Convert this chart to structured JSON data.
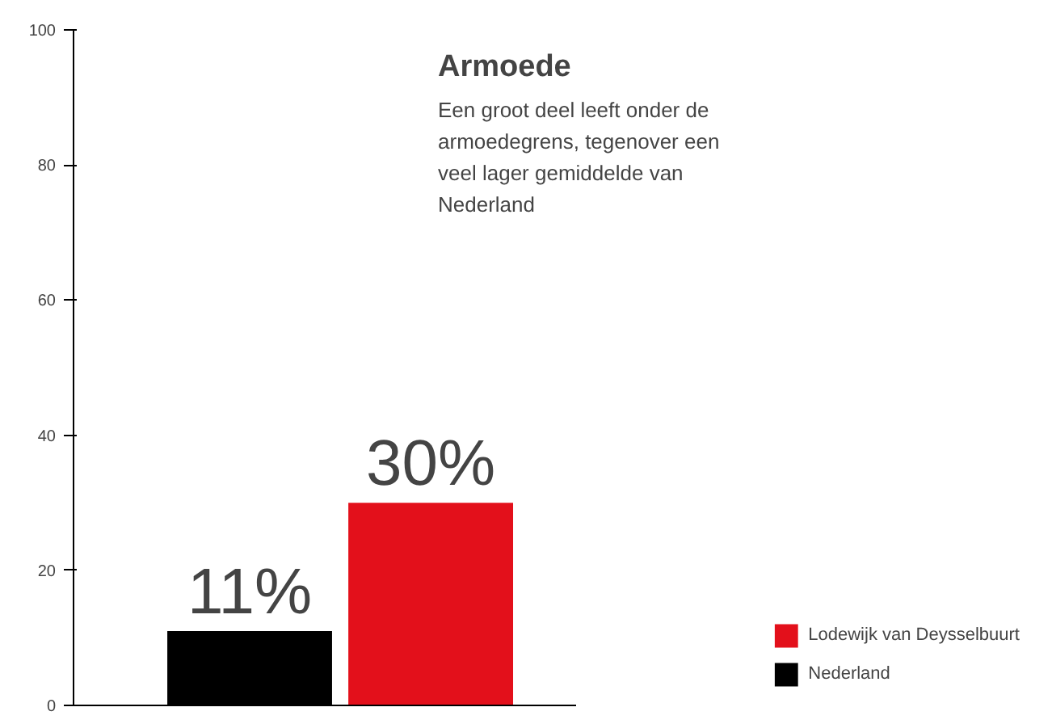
{
  "chart_data": {
    "type": "bar",
    "title": "Armoede",
    "subtitle": "Een groot deel leeft onder de\narmoedegrens, tegenover een\nveel lager gemiddelde van\nNederland",
    "categories": [
      null
    ],
    "series": [
      {
        "name": "Nederland",
        "color": "#000000",
        "values": [
          11
        ],
        "value_labels": [
          "11%"
        ]
      },
      {
        "name": "Lodewijk van Deysselbuurt",
        "color": "#e3101b",
        "values": [
          30
        ],
        "value_labels": [
          "30%"
        ]
      }
    ],
    "ylim": [
      0,
      100
    ],
    "yticks": [
      0,
      20,
      40,
      60,
      80,
      100
    ],
    "grid": false,
    "legend": "bottom right"
  }
}
